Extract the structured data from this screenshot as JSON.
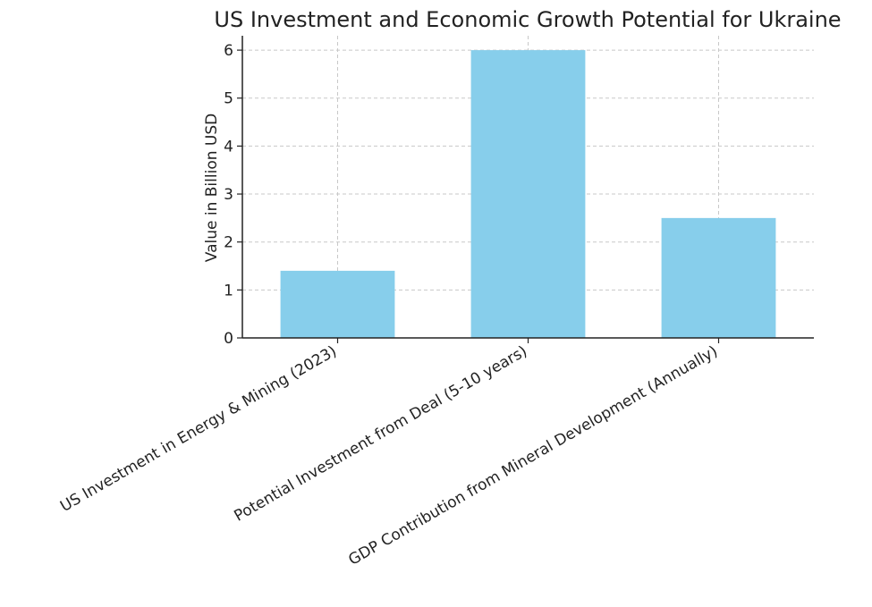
{
  "chart_data": {
    "type": "bar",
    "title": "US Investment and Economic Growth Potential for Ukraine",
    "xlabel": "",
    "ylabel": "Value in Billion USD",
    "categories": [
      "US Investment in Energy & Mining (2023)",
      "Potential Investment from Deal (5-10 years)",
      "GDP Contribution from Mineral Development (Annually)"
    ],
    "values": [
      1.4,
      6.0,
      2.5
    ],
    "ylim": [
      0,
      6.3
    ],
    "yticks": [
      "0",
      "1",
      "2",
      "3",
      "4",
      "5",
      "6"
    ],
    "grid": true,
    "legend": "none",
    "colors": {
      "bar": "#87ceeb",
      "axis": "#222222",
      "grid": "#c8c8c8"
    }
  }
}
